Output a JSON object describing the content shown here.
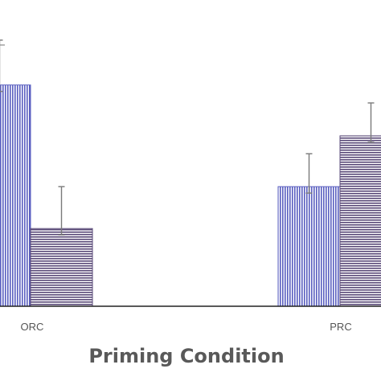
{
  "chart_data": {
    "type": "bar",
    "title": "",
    "xlabel": "Priming Condition",
    "ylabel": "",
    "categories": [
      "ORC",
      "PRC"
    ],
    "ylim": [
      0,
      1.0
    ],
    "grid": false,
    "legend": "none",
    "series": [
      {
        "color": "#5a5fc0",
        "pattern": "vertical-stripes",
        "values": [
          0.74,
          0.4
        ],
        "errors": [
          0.15,
          0.11
        ]
      },
      {
        "color": "#5a4a78",
        "pattern": "horizontal-stripes",
        "values": [
          0.26,
          0.57
        ],
        "errors": [
          0.14,
          0.11
        ]
      }
    ]
  }
}
